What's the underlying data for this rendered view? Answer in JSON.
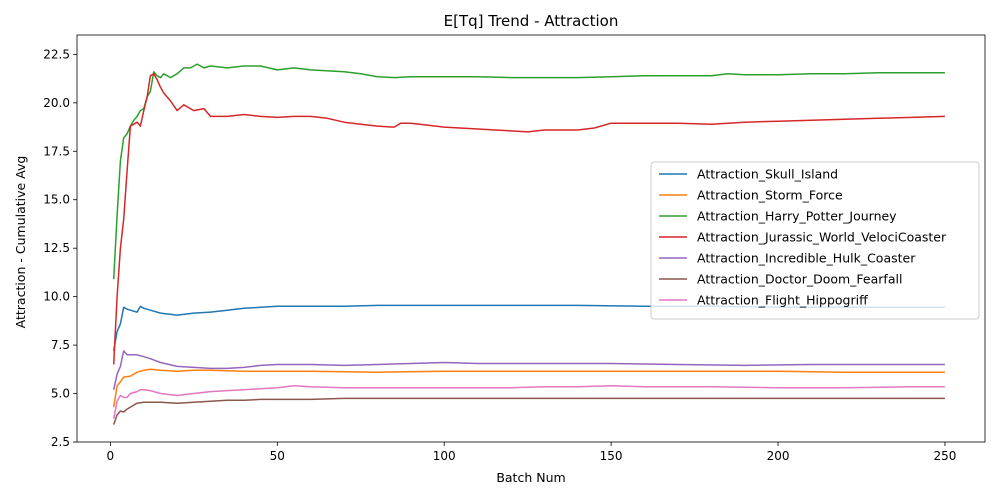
{
  "chart_data": {
    "type": "line",
    "title": "E[Tq] Trend - Attraction",
    "xlabel": "Batch Num",
    "ylabel": "Attraction - Cumulative Avg",
    "xlim": [
      -10,
      262
    ],
    "ylim": [
      2.5,
      23.5
    ],
    "xticks": [
      0,
      50,
      100,
      150,
      200,
      250
    ],
    "yticks": [
      2.5,
      5.0,
      7.5,
      10.0,
      12.5,
      15.0,
      17.5,
      20.0,
      22.5
    ],
    "grid": false,
    "legend_position": "center-right",
    "series": [
      {
        "name": "Attraction_Skull_Island",
        "color": "#1f77b4",
        "points": [
          [
            1,
            7.2
          ],
          [
            2,
            8.2
          ],
          [
            3,
            8.6
          ],
          [
            4,
            9.45
          ],
          [
            5,
            9.35
          ],
          [
            6,
            9.3
          ],
          [
            8,
            9.2
          ],
          [
            9,
            9.5
          ],
          [
            10,
            9.4
          ],
          [
            12,
            9.3
          ],
          [
            15,
            9.15
          ],
          [
            20,
            9.05
          ],
          [
            25,
            9.15
          ],
          [
            30,
            9.2
          ],
          [
            35,
            9.3
          ],
          [
            40,
            9.4
          ],
          [
            45,
            9.45
          ],
          [
            50,
            9.5
          ],
          [
            60,
            9.5
          ],
          [
            70,
            9.5
          ],
          [
            80,
            9.55
          ],
          [
            100,
            9.55
          ],
          [
            120,
            9.55
          ],
          [
            140,
            9.55
          ],
          [
            160,
            9.5
          ],
          [
            180,
            9.5
          ],
          [
            200,
            9.45
          ],
          [
            220,
            9.45
          ],
          [
            240,
            9.45
          ],
          [
            250,
            9.45
          ]
        ]
      },
      {
        "name": "Attraction_Storm_Force",
        "color": "#ff7f0e",
        "points": [
          [
            1,
            4.3
          ],
          [
            2,
            5.4
          ],
          [
            3,
            5.6
          ],
          [
            4,
            5.85
          ],
          [
            6,
            5.9
          ],
          [
            8,
            6.1
          ],
          [
            10,
            6.2
          ],
          [
            12,
            6.25
          ],
          [
            15,
            6.2
          ],
          [
            20,
            6.15
          ],
          [
            25,
            6.2
          ],
          [
            30,
            6.2
          ],
          [
            40,
            6.15
          ],
          [
            60,
            6.15
          ],
          [
            80,
            6.1
          ],
          [
            100,
            6.15
          ],
          [
            120,
            6.15
          ],
          [
            150,
            6.15
          ],
          [
            180,
            6.15
          ],
          [
            200,
            6.15
          ],
          [
            220,
            6.1
          ],
          [
            250,
            6.1
          ]
        ]
      },
      {
        "name": "Attraction_Harry_Potter_Journey",
        "color": "#2ca02c",
        "points": [
          [
            1,
            10.9
          ],
          [
            2,
            14.2
          ],
          [
            3,
            17.0
          ],
          [
            4,
            18.2
          ],
          [
            5,
            18.4
          ],
          [
            6,
            18.8
          ],
          [
            7,
            19.1
          ],
          [
            8,
            19.3
          ],
          [
            9,
            19.6
          ],
          [
            10,
            19.7
          ],
          [
            11,
            20.3
          ],
          [
            12,
            20.6
          ],
          [
            13,
            21.6
          ],
          [
            14,
            21.4
          ],
          [
            15,
            21.3
          ],
          [
            16,
            21.5
          ],
          [
            18,
            21.3
          ],
          [
            20,
            21.5
          ],
          [
            22,
            21.8
          ],
          [
            24,
            21.8
          ],
          [
            26,
            22.0
          ],
          [
            28,
            21.8
          ],
          [
            30,
            21.9
          ],
          [
            35,
            21.8
          ],
          [
            40,
            21.9
          ],
          [
            45,
            21.9
          ],
          [
            50,
            21.7
          ],
          [
            55,
            21.8
          ],
          [
            60,
            21.7
          ],
          [
            70,
            21.6
          ],
          [
            75,
            21.5
          ],
          [
            80,
            21.35
          ],
          [
            85,
            21.3
          ],
          [
            90,
            21.35
          ],
          [
            100,
            21.35
          ],
          [
            110,
            21.35
          ],
          [
            120,
            21.3
          ],
          [
            130,
            21.3
          ],
          [
            140,
            21.3
          ],
          [
            150,
            21.35
          ],
          [
            160,
            21.4
          ],
          [
            170,
            21.4
          ],
          [
            180,
            21.4
          ],
          [
            185,
            21.5
          ],
          [
            190,
            21.45
          ],
          [
            200,
            21.45
          ],
          [
            210,
            21.5
          ],
          [
            220,
            21.5
          ],
          [
            230,
            21.55
          ],
          [
            240,
            21.55
          ],
          [
            250,
            21.55
          ]
        ]
      },
      {
        "name": "Attraction_Jurassic_World_VelociCoaster",
        "color": "#d62728",
        "points": [
          [
            1,
            6.5
          ],
          [
            2,
            10.0
          ],
          [
            3,
            12.5
          ],
          [
            4,
            14.0
          ],
          [
            5,
            16.5
          ],
          [
            6,
            18.8
          ],
          [
            7,
            18.9
          ],
          [
            8,
            19.0
          ],
          [
            9,
            18.8
          ],
          [
            10,
            19.6
          ],
          [
            11,
            20.3
          ],
          [
            12,
            21.4
          ],
          [
            13,
            21.5
          ],
          [
            14,
            21.2
          ],
          [
            15,
            20.8
          ],
          [
            16,
            20.5
          ],
          [
            18,
            20.1
          ],
          [
            20,
            19.6
          ],
          [
            22,
            19.9
          ],
          [
            25,
            19.6
          ],
          [
            28,
            19.7
          ],
          [
            30,
            19.3
          ],
          [
            35,
            19.3
          ],
          [
            40,
            19.4
          ],
          [
            45,
            19.3
          ],
          [
            50,
            19.25
          ],
          [
            55,
            19.3
          ],
          [
            60,
            19.3
          ],
          [
            65,
            19.2
          ],
          [
            70,
            19.0
          ],
          [
            75,
            18.9
          ],
          [
            80,
            18.8
          ],
          [
            85,
            18.75
          ],
          [
            87,
            18.95
          ],
          [
            90,
            18.95
          ],
          [
            95,
            18.85
          ],
          [
            100,
            18.75
          ],
          [
            110,
            18.65
          ],
          [
            120,
            18.55
          ],
          [
            125,
            18.5
          ],
          [
            130,
            18.6
          ],
          [
            140,
            18.6
          ],
          [
            145,
            18.7
          ],
          [
            150,
            18.95
          ],
          [
            160,
            18.95
          ],
          [
            170,
            18.95
          ],
          [
            180,
            18.9
          ],
          [
            190,
            19.0
          ],
          [
            200,
            19.05
          ],
          [
            210,
            19.1
          ],
          [
            220,
            19.15
          ],
          [
            230,
            19.2
          ],
          [
            240,
            19.25
          ],
          [
            250,
            19.3
          ]
        ]
      },
      {
        "name": "Attraction_Incredible_Hulk_Coaster",
        "color": "#9467bd",
        "points": [
          [
            1,
            5.2
          ],
          [
            2,
            6.0
          ],
          [
            3,
            6.4
          ],
          [
            4,
            7.2
          ],
          [
            5,
            7.0
          ],
          [
            6,
            7.0
          ],
          [
            8,
            7.0
          ],
          [
            10,
            6.9
          ],
          [
            12,
            6.8
          ],
          [
            15,
            6.6
          ],
          [
            20,
            6.4
          ],
          [
            25,
            6.35
          ],
          [
            30,
            6.3
          ],
          [
            35,
            6.3
          ],
          [
            40,
            6.35
          ],
          [
            45,
            6.45
          ],
          [
            50,
            6.5
          ],
          [
            60,
            6.5
          ],
          [
            70,
            6.45
          ],
          [
            80,
            6.5
          ],
          [
            90,
            6.55
          ],
          [
            100,
            6.6
          ],
          [
            110,
            6.55
          ],
          [
            130,
            6.55
          ],
          [
            150,
            6.55
          ],
          [
            170,
            6.5
          ],
          [
            190,
            6.45
          ],
          [
            210,
            6.5
          ],
          [
            230,
            6.5
          ],
          [
            250,
            6.5
          ]
        ]
      },
      {
        "name": "Attraction_Doctor_Doom_Fearfall",
        "color": "#8c564b",
        "points": [
          [
            1,
            3.4
          ],
          [
            2,
            3.9
          ],
          [
            3,
            4.1
          ],
          [
            4,
            4.05
          ],
          [
            5,
            4.2
          ],
          [
            6,
            4.3
          ],
          [
            8,
            4.5
          ],
          [
            10,
            4.55
          ],
          [
            15,
            4.55
          ],
          [
            20,
            4.5
          ],
          [
            25,
            4.55
          ],
          [
            30,
            4.6
          ],
          [
            35,
            4.65
          ],
          [
            40,
            4.65
          ],
          [
            45,
            4.7
          ],
          [
            50,
            4.7
          ],
          [
            60,
            4.7
          ],
          [
            70,
            4.75
          ],
          [
            80,
            4.75
          ],
          [
            100,
            4.75
          ],
          [
            120,
            4.75
          ],
          [
            140,
            4.75
          ],
          [
            160,
            4.75
          ],
          [
            180,
            4.75
          ],
          [
            200,
            4.75
          ],
          [
            220,
            4.75
          ],
          [
            250,
            4.75
          ]
        ]
      },
      {
        "name": "Attraction_Flight_Hippogriff",
        "color": "#e377c2",
        "points": [
          [
            1,
            3.7
          ],
          [
            2,
            4.6
          ],
          [
            3,
            4.9
          ],
          [
            4,
            4.8
          ],
          [
            5,
            4.8
          ],
          [
            6,
            5.0
          ],
          [
            8,
            5.1
          ],
          [
            9,
            5.2
          ],
          [
            10,
            5.2
          ],
          [
            12,
            5.15
          ],
          [
            15,
            5.0
          ],
          [
            20,
            4.9
          ],
          [
            25,
            5.0
          ],
          [
            30,
            5.1
          ],
          [
            35,
            5.15
          ],
          [
            40,
            5.2
          ],
          [
            50,
            5.3
          ],
          [
            55,
            5.4
          ],
          [
            60,
            5.35
          ],
          [
            70,
            5.3
          ],
          [
            80,
            5.3
          ],
          [
            90,
            5.3
          ],
          [
            100,
            5.3
          ],
          [
            110,
            5.3
          ],
          [
            120,
            5.3
          ],
          [
            130,
            5.35
          ],
          [
            140,
            5.35
          ],
          [
            150,
            5.4
          ],
          [
            160,
            5.35
          ],
          [
            180,
            5.35
          ],
          [
            200,
            5.3
          ],
          [
            220,
            5.3
          ],
          [
            240,
            5.35
          ],
          [
            250,
            5.35
          ]
        ]
      }
    ]
  }
}
